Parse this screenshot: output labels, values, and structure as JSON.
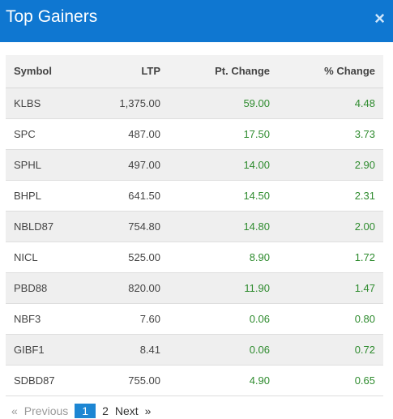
{
  "header": {
    "title": "Top Gainers",
    "close_glyph": "×"
  },
  "table": {
    "columns": [
      "Symbol",
      "LTP",
      "Pt. Change",
      "% Change"
    ],
    "rows": [
      [
        "KLBS",
        "1,375.00",
        "59.00",
        "4.48"
      ],
      [
        "SPC",
        "487.00",
        "17.50",
        "3.73"
      ],
      [
        "SPHL",
        "497.00",
        "14.00",
        "2.90"
      ],
      [
        "BHPL",
        "641.50",
        "14.50",
        "2.31"
      ],
      [
        "NBLD87",
        "754.80",
        "14.80",
        "2.00"
      ],
      [
        "NICL",
        "525.00",
        "8.90",
        "1.72"
      ],
      [
        "PBD88",
        "820.00",
        "11.90",
        "1.47"
      ],
      [
        "NBF3",
        "7.60",
        "0.06",
        "0.80"
      ],
      [
        "GIBF1",
        "8.41",
        "0.06",
        "0.72"
      ],
      [
        "SDBD87",
        "755.00",
        "4.90",
        "0.65"
      ]
    ]
  },
  "pagination": {
    "first": "«",
    "previous": "Previous",
    "pages": [
      "1",
      "2"
    ],
    "next": "Next",
    "last": "»"
  },
  "colors": {
    "header_bg": "#0f77d1",
    "gain": "#2e8b2e",
    "active_page": "#1d86d3"
  }
}
